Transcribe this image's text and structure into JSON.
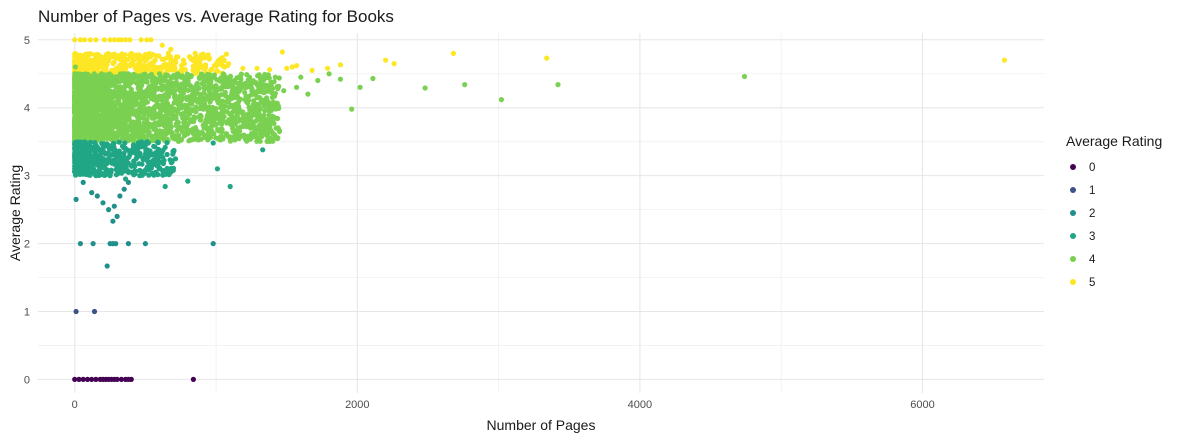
{
  "chart_data": {
    "type": "scatter",
    "title": "Number of Pages vs. Average Rating for Books",
    "xlabel": "Number of Pages",
    "ylabel": "Average Rating",
    "xlim": [
      -260,
      6860
    ],
    "ylim": [
      -0.2,
      5.1
    ],
    "x_ticks": [
      0,
      2000,
      4000,
      6000
    ],
    "x_tick_labels": [
      "0",
      "2000",
      "4000",
      "6000"
    ],
    "y_ticks": [
      0,
      1,
      2,
      3,
      4,
      5
    ],
    "y_tick_labels": [
      "0",
      "1",
      "2",
      "3",
      "4",
      "5"
    ],
    "grid": true,
    "legend": {
      "title": "Average Rating",
      "position": "right",
      "entries": [
        {
          "label": "0",
          "color": "#440154"
        },
        {
          "label": "1",
          "color": "#3b528b"
        },
        {
          "label": "2",
          "color": "#21908c"
        },
        {
          "label": "3",
          "color": "#21a685"
        },
        {
          "label": "4",
          "color": "#7ad151"
        },
        {
          "label": "5",
          "color": "#fde725"
        }
      ]
    },
    "points": [
      [
        0,
        0,
        0
      ],
      [
        30,
        0,
        0
      ],
      [
        60,
        0,
        0
      ],
      [
        90,
        0,
        0
      ],
      [
        120,
        0,
        0
      ],
      [
        150,
        0,
        0
      ],
      [
        180,
        0,
        0
      ],
      [
        200,
        0,
        0
      ],
      [
        220,
        0,
        0
      ],
      [
        240,
        0,
        0
      ],
      [
        260,
        0,
        0
      ],
      [
        280,
        0,
        0
      ],
      [
        300,
        0,
        0
      ],
      [
        330,
        0,
        0
      ],
      [
        360,
        0,
        0
      ],
      [
        380,
        0,
        0
      ],
      [
        400,
        0,
        0
      ],
      [
        840,
        0,
        0
      ],
      [
        10,
        1,
        1
      ],
      [
        140,
        1,
        1
      ],
      [
        40,
        2,
        2
      ],
      [
        130,
        2,
        2
      ],
      [
        250,
        2,
        2
      ],
      [
        270,
        2,
        2
      ],
      [
        290,
        2,
        2
      ],
      [
        380,
        2,
        2
      ],
      [
        500,
        2,
        2
      ],
      [
        980,
        2,
        2
      ],
      [
        230,
        1.67,
        2
      ],
      [
        270,
        2.33,
        2
      ],
      [
        300,
        2.4,
        2
      ],
      [
        240,
        2.5,
        2
      ],
      [
        200,
        2.6,
        2
      ],
      [
        320,
        2.7,
        2
      ],
      [
        350,
        2.8,
        2
      ],
      [
        120,
        2.75,
        2
      ],
      [
        60,
        2.9,
        2
      ],
      [
        10,
        2.65,
        2
      ],
      [
        420,
        2.63,
        2
      ],
      [
        280,
        2.55,
        2
      ],
      [
        160,
        2.7,
        2
      ],
      [
        380,
        2.9,
        2
      ],
      [
        640,
        2.84,
        3
      ],
      [
        800,
        2.92,
        3
      ],
      [
        1100,
        2.84,
        3
      ],
      [
        1010,
        3.1,
        3
      ],
      [
        1330,
        3.38,
        3
      ],
      [
        980,
        3.48,
        3
      ],
      [
        400,
        3.05,
        3
      ],
      [
        460,
        3.0,
        3
      ],
      [
        520,
        3.2,
        3
      ],
      [
        600,
        3.3,
        3
      ],
      [
        700,
        3.35,
        3
      ],
      [
        360,
        2.95,
        3
      ],
      [
        300,
        3.1,
        3
      ],
      [
        250,
        3.0,
        3
      ],
      [
        150,
        3.0,
        3
      ],
      [
        100,
        3.2,
        3
      ],
      [
        30,
        3.3,
        3
      ],
      [
        80,
        3.4,
        3
      ],
      [
        500,
        3.45,
        3
      ],
      [
        2,
        4.5,
        4
      ],
      [
        5,
        4.6,
        4
      ],
      [
        1480,
        4.25,
        4
      ],
      [
        1570,
        4.3,
        4
      ],
      [
        1650,
        4.2,
        4
      ],
      [
        1720,
        4.4,
        4
      ],
      [
        1800,
        4.5,
        4
      ],
      [
        1880,
        4.42,
        4
      ],
      [
        1960,
        3.98,
        4
      ],
      [
        2020,
        4.3,
        4
      ],
      [
        2110,
        4.43,
        4
      ],
      [
        2480,
        4.29,
        4
      ],
      [
        2760,
        4.34,
        4
      ],
      [
        3020,
        4.12,
        4
      ],
      [
        3420,
        4.34,
        4
      ],
      [
        4740,
        4.46,
        4
      ],
      [
        1400,
        4.15,
        4
      ],
      [
        1300,
        4.05,
        4
      ],
      [
        1250,
        4.35,
        4
      ],
      [
        1200,
        3.75,
        4
      ],
      [
        1150,
        3.95,
        4
      ],
      [
        1350,
        3.7,
        4
      ],
      [
        1420,
        4.45,
        4
      ],
      [
        1380,
        3.85,
        4
      ],
      [
        1600,
        4.45,
        4
      ],
      [
        0,
        5,
        5
      ],
      [
        40,
        5,
        5
      ],
      [
        70,
        5,
        5
      ],
      [
        110,
        5,
        5
      ],
      [
        150,
        5,
        5
      ],
      [
        210,
        5,
        5
      ],
      [
        250,
        5,
        5
      ],
      [
        280,
        5,
        5
      ],
      [
        310,
        5,
        5
      ],
      [
        330,
        5,
        5
      ],
      [
        360,
        5,
        5
      ],
      [
        390,
        5,
        5
      ],
      [
        470,
        5,
        5
      ],
      [
        510,
        5,
        5
      ],
      [
        540,
        5,
        5
      ],
      [
        620,
        4.92,
        5
      ],
      [
        680,
        4.86,
        5
      ],
      [
        720,
        4.75,
        5
      ],
      [
        770,
        4.7,
        5
      ],
      [
        860,
        4.65,
        5
      ],
      [
        920,
        4.62,
        5
      ],
      [
        1060,
        4.6,
        5
      ],
      [
        1190,
        4.58,
        5
      ],
      [
        1290,
        4.58,
        5
      ],
      [
        1380,
        4.56,
        5
      ],
      [
        1470,
        4.82,
        5
      ],
      [
        1500,
        4.58,
        5
      ],
      [
        1540,
        4.6,
        5
      ],
      [
        1570,
        4.62,
        5
      ],
      [
        1680,
        4.55,
        5
      ],
      [
        1790,
        4.58,
        5
      ],
      [
        1880,
        4.63,
        5
      ],
      [
        2200,
        4.7,
        5
      ],
      [
        2260,
        4.65,
        5
      ],
      [
        2680,
        4.8,
        5
      ],
      [
        3340,
        4.73,
        5
      ],
      [
        6580,
        4.7,
        5
      ]
    ],
    "dense_bands": [
      {
        "level": 5,
        "x_extent": [
          0,
          1100
        ],
        "y_extent": [
          4.5,
          4.8
        ]
      },
      {
        "level": 4,
        "x_extent": [
          0,
          1450
        ],
        "y_extent": [
          3.5,
          4.5
        ]
      },
      {
        "level": 3,
        "x_extent": [
          0,
          720
        ],
        "y_extent": [
          3.0,
          3.5
        ]
      }
    ]
  }
}
